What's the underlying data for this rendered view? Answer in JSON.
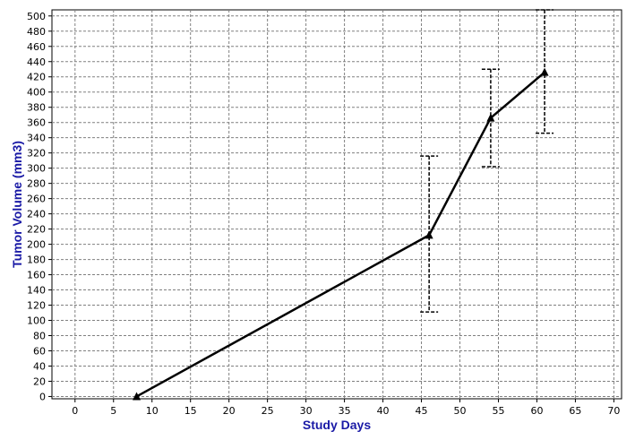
{
  "chart_data": {
    "type": "line",
    "title": "",
    "xlabel": "Study Days",
    "ylabel": "Tumor Volume (mm3)",
    "xlim": [
      -3,
      71
    ],
    "ylim": [
      -3,
      508
    ],
    "xticks": [
      0,
      5,
      10,
      15,
      20,
      25,
      30,
      35,
      40,
      45,
      50,
      55,
      60,
      65,
      70
    ],
    "yticks": [
      0,
      20,
      40,
      60,
      80,
      100,
      120,
      140,
      160,
      180,
      200,
      220,
      240,
      260,
      280,
      300,
      320,
      340,
      360,
      380,
      400,
      420,
      440,
      460,
      480,
      500
    ],
    "grid": true,
    "series": [
      {
        "x": [
          8,
          46,
          54,
          61
        ],
        "y": [
          0,
          212,
          366,
          426
        ],
        "error_low": [
          0,
          111,
          302,
          346
        ],
        "error_high": [
          0,
          316,
          430,
          508
        ]
      }
    ],
    "colors": {
      "line": "#000000",
      "grid": "#808080",
      "axis_title": "#1a1aa6"
    }
  }
}
